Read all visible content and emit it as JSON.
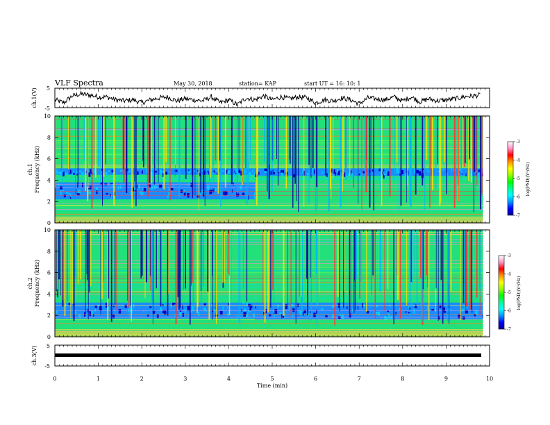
{
  "header": {
    "title": "VLF Spectra",
    "date": "May 30, 2018",
    "station": "station= KAP",
    "start": "start  UT =   16: 10: 1"
  },
  "chart_data": [
    {
      "type": "line",
      "panel": "ch1",
      "ylabel": "ch.1(V)",
      "ylim": [
        -5,
        5
      ],
      "yticks": [
        "5",
        "-5"
      ],
      "xlim": [
        0,
        10
      ],
      "x": [
        0,
        0.2,
        0.4,
        0.6,
        0.8,
        1.0,
        1.2,
        1.4,
        1.6,
        1.8,
        2.0,
        2.2,
        2.4,
        2.6,
        2.8,
        3.0,
        3.2,
        3.4,
        3.6,
        3.8,
        4.0,
        4.2,
        4.4,
        4.6,
        4.8,
        5.0,
        5.2,
        5.4,
        5.6,
        5.8,
        6.0,
        6.2,
        6.4,
        6.6,
        6.8,
        7.0,
        7.2,
        7.4,
        7.6,
        7.8,
        8.0,
        8.2,
        8.4,
        8.6,
        8.8,
        9.0,
        9.2,
        9.4,
        9.6,
        9.8
      ],
      "y": [
        -1.0,
        -2.5,
        1.0,
        2.0,
        1.5,
        0.5,
        0.5,
        -1.0,
        -1.5,
        -1.0,
        -2.5,
        -1.0,
        0.0,
        0.5,
        -1.5,
        -0.5,
        -1.0,
        -1.5,
        0.5,
        -2.5,
        -1.0,
        -3.5,
        0.0,
        -1.0,
        1.0,
        -1.0,
        0.5,
        -0.5,
        0.5,
        0.0,
        -2.5,
        -1.0,
        -1.5,
        0.0,
        -1.0,
        -3.0,
        0.0,
        -0.5,
        -1.0,
        0.5,
        -1.5,
        0.5,
        -2.0,
        -0.5,
        -1.5,
        -1.0,
        -0.5,
        0.5,
        1.0,
        1.5
      ]
    },
    {
      "type": "heatmap",
      "panel": "ch1-spectrogram",
      "ylabel_channel": "ch.1",
      "ylabel": "Frequency  (kHz)",
      "ylim": [
        0,
        10
      ],
      "yticks": [
        "0",
        "2",
        "4",
        "6",
        "8",
        "10"
      ],
      "xlim": [
        0,
        10
      ],
      "x_end": 9.85,
      "quiet_bands_khz_before_4_6_min": [
        [
          2.2,
          3.8
        ],
        [
          4.5,
          5.1
        ]
      ],
      "quiet_bands_khz_after_4_6_min": [
        [
          4.4,
          5.1
        ]
      ],
      "colorbar": {
        "label": "log(PSD)(V²/Hz)",
        "ticks": [
          "-3",
          "-4",
          "-5",
          "-6",
          "-7"
        ],
        "range": [
          -7,
          -3
        ],
        "colors": [
          "#000096",
          "#0000ff",
          "#0096ff",
          "#00ffff",
          "#00ff96",
          "#00ff00",
          "#96ff00",
          "#ffff00",
          "#ff9600",
          "#ff0000",
          "#ff96c8",
          "#ffffff"
        ]
      }
    },
    {
      "type": "heatmap",
      "panel": "ch2-spectrogram",
      "ylabel_channel": "ch.2",
      "ylabel": "Frequency  (kHz)",
      "ylim": [
        0,
        10
      ],
      "yticks": [
        "0",
        "2",
        "4",
        "6",
        "8",
        "10"
      ],
      "xlim": [
        0,
        10
      ],
      "x_end": 9.85,
      "quiet_bands_khz_before_4_6_min": [
        [
          1.7,
          3.2
        ]
      ],
      "quiet_bands_khz_after_4_6_min": [
        [
          1.6,
          3.2
        ]
      ],
      "colorbar": {
        "label": "log(PSD)(V²/Hz)",
        "ticks": [
          "-3",
          "-4",
          "-5",
          "-6",
          "-7"
        ],
        "range": [
          -7,
          -3
        ]
      }
    },
    {
      "type": "line",
      "panel": "ch3",
      "ylabel": "ch.3(V)",
      "ylim": [
        -5,
        5
      ],
      "yticks": [
        "5",
        "-5"
      ],
      "xlim": [
        0,
        10
      ],
      "x": [
        0,
        9.85
      ],
      "y": [
        -1.8,
        -1.8
      ]
    }
  ],
  "x_axis": {
    "label": "Time  (min)",
    "ticks": [
      "0",
      "1",
      "2",
      "3",
      "4",
      "5",
      "6",
      "7",
      "8",
      "9",
      "10"
    ]
  }
}
